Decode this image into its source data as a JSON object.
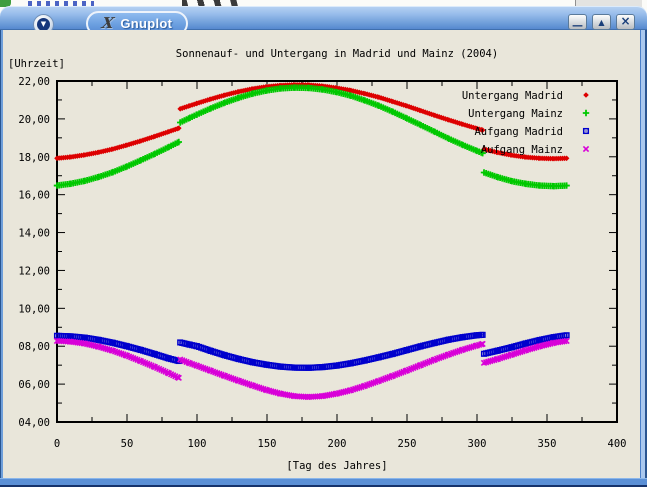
{
  "window": {
    "title": "Gnuplot",
    "icon": "x11-logo",
    "controls": [
      {
        "name": "minimize",
        "glyph": "—"
      },
      {
        "name": "maximize",
        "glyph": "▲"
      },
      {
        "name": "close",
        "glyph": "×"
      }
    ]
  },
  "chart_data": {
    "type": "scatter",
    "title": "Sonnenauf- und Untergang in Madrid und Mainz (2004)",
    "xlabel": "[Tag des Jahres]",
    "ylabel": "[Uhrzeit]",
    "xlim": [
      0,
      400
    ],
    "ylim": [
      4,
      22
    ],
    "x_ticks": {
      "values": [
        0,
        50,
        100,
        150,
        200,
        250,
        300,
        350,
        400
      ],
      "labels": [
        "0",
        "50",
        "100",
        "150",
        "200",
        "250",
        "300",
        "350",
        "400"
      ]
    },
    "y_ticks": {
      "values": [
        4,
        6,
        8,
        10,
        12,
        14,
        16,
        18,
        20,
        22
      ],
      "labels": [
        "04,00",
        "06,00",
        "08,00",
        "10,00",
        "12,00",
        "14,00",
        "16,00",
        "18,00",
        "20,00",
        "22,00"
      ]
    },
    "x_minor_step": 25,
    "y_minor_step": 1,
    "grid": false,
    "legend_position": "top-right",
    "background": "#e9e6da",
    "series": [
      {
        "name": "Untergang Madrid",
        "marker": "diamond",
        "color": "#dd0000",
        "points": [
          [
            0,
            17.92
          ],
          [
            10,
            17.99
          ],
          [
            20,
            18.1
          ],
          [
            30,
            18.24
          ],
          [
            40,
            18.41
          ],
          [
            50,
            18.62
          ],
          [
            60,
            18.84
          ],
          [
            70,
            19.08
          ],
          [
            80,
            19.33
          ],
          [
            87,
            19.51
          ],
          [
            88,
            20.53
          ],
          [
            95,
            20.7
          ],
          [
            100,
            20.82
          ],
          [
            110,
            21.05
          ],
          [
            120,
            21.26
          ],
          [
            130,
            21.44
          ],
          [
            140,
            21.59
          ],
          [
            150,
            21.7
          ],
          [
            160,
            21.77
          ],
          [
            170,
            21.8
          ],
          [
            180,
            21.79
          ],
          [
            190,
            21.73
          ],
          [
            200,
            21.63
          ],
          [
            210,
            21.5
          ],
          [
            220,
            21.33
          ],
          [
            230,
            21.14
          ],
          [
            240,
            20.91
          ],
          [
            250,
            20.68
          ],
          [
            260,
            20.43
          ],
          [
            270,
            20.18
          ],
          [
            280,
            19.94
          ],
          [
            290,
            19.71
          ],
          [
            300,
            19.49
          ],
          [
            304,
            19.41
          ],
          [
            305,
            18.4
          ],
          [
            315,
            18.22
          ],
          [
            325,
            18.08
          ],
          [
            335,
            17.98
          ],
          [
            345,
            17.92
          ],
          [
            355,
            17.9
          ],
          [
            364,
            17.92
          ]
        ]
      },
      {
        "name": "Untergang Mainz",
        "marker": "plus",
        "color": "#00c800",
        "points": [
          [
            0,
            16.48
          ],
          [
            10,
            16.58
          ],
          [
            20,
            16.73
          ],
          [
            30,
            16.94
          ],
          [
            40,
            17.19
          ],
          [
            50,
            17.49
          ],
          [
            60,
            17.82
          ],
          [
            70,
            18.16
          ],
          [
            80,
            18.52
          ],
          [
            87,
            18.78
          ],
          [
            88,
            19.81
          ],
          [
            95,
            20.06
          ],
          [
            100,
            20.23
          ],
          [
            110,
            20.56
          ],
          [
            120,
            20.86
          ],
          [
            130,
            21.12
          ],
          [
            140,
            21.34
          ],
          [
            150,
            21.5
          ],
          [
            160,
            21.61
          ],
          [
            170,
            21.65
          ],
          [
            180,
            21.63
          ],
          [
            190,
            21.55
          ],
          [
            200,
            21.41
          ],
          [
            210,
            21.22
          ],
          [
            220,
            20.97
          ],
          [
            230,
            20.69
          ],
          [
            240,
            20.37
          ],
          [
            250,
            20.02
          ],
          [
            260,
            19.67
          ],
          [
            270,
            19.31
          ],
          [
            280,
            18.95
          ],
          [
            290,
            18.62
          ],
          [
            300,
            18.31
          ],
          [
            304,
            18.19
          ],
          [
            305,
            17.17
          ],
          [
            315,
            16.92
          ],
          [
            325,
            16.71
          ],
          [
            335,
            16.57
          ],
          [
            345,
            16.48
          ],
          [
            355,
            16.45
          ],
          [
            364,
            16.48
          ]
        ]
      },
      {
        "name": "Aufgang Madrid",
        "marker": "square-dot",
        "color": "#0000cd",
        "points": [
          [
            0,
            8.55
          ],
          [
            10,
            8.52
          ],
          [
            20,
            8.45
          ],
          [
            30,
            8.33
          ],
          [
            40,
            8.18
          ],
          [
            50,
            8.0
          ],
          [
            60,
            7.8
          ],
          [
            70,
            7.58
          ],
          [
            80,
            7.35
          ],
          [
            87,
            7.22
          ],
          [
            88,
            8.2
          ],
          [
            95,
            8.08
          ],
          [
            100,
            8.0
          ],
          [
            110,
            7.75
          ],
          [
            120,
            7.52
          ],
          [
            130,
            7.32
          ],
          [
            140,
            7.15
          ],
          [
            150,
            7.02
          ],
          [
            160,
            6.92
          ],
          [
            170,
            6.87
          ],
          [
            180,
            6.86
          ],
          [
            190,
            6.9
          ],
          [
            200,
            6.98
          ],
          [
            210,
            7.1
          ],
          [
            220,
            7.25
          ],
          [
            230,
            7.42
          ],
          [
            240,
            7.6
          ],
          [
            250,
            7.8
          ],
          [
            260,
            8.0
          ],
          [
            270,
            8.18
          ],
          [
            280,
            8.35
          ],
          [
            290,
            8.48
          ],
          [
            300,
            8.58
          ],
          [
            304,
            8.6
          ],
          [
            305,
            7.6
          ],
          [
            315,
            7.77
          ],
          [
            325,
            7.95
          ],
          [
            335,
            8.15
          ],
          [
            345,
            8.33
          ],
          [
            355,
            8.48
          ],
          [
            364,
            8.58
          ]
        ]
      },
      {
        "name": "Aufgang Mainz",
        "marker": "cross",
        "color": "#d800d8",
        "points": [
          [
            0,
            8.28
          ],
          [
            10,
            8.24
          ],
          [
            20,
            8.14
          ],
          [
            30,
            7.97
          ],
          [
            40,
            7.76
          ],
          [
            50,
            7.5
          ],
          [
            60,
            7.21
          ],
          [
            70,
            6.9
          ],
          [
            80,
            6.57
          ],
          [
            87,
            6.33
          ],
          [
            88,
            7.3
          ],
          [
            95,
            7.1
          ],
          [
            100,
            6.97
          ],
          [
            110,
            6.7
          ],
          [
            120,
            6.43
          ],
          [
            130,
            6.17
          ],
          [
            140,
            5.92
          ],
          [
            150,
            5.68
          ],
          [
            160,
            5.49
          ],
          [
            170,
            5.36
          ],
          [
            180,
            5.32
          ],
          [
            190,
            5.37
          ],
          [
            200,
            5.5
          ],
          [
            210,
            5.68
          ],
          [
            220,
            5.91
          ],
          [
            230,
            6.17
          ],
          [
            240,
            6.44
          ],
          [
            250,
            6.72
          ],
          [
            260,
            7.01
          ],
          [
            270,
            7.3
          ],
          [
            280,
            7.57
          ],
          [
            290,
            7.82
          ],
          [
            300,
            8.04
          ],
          [
            304,
            8.12
          ],
          [
            305,
            7.12
          ],
          [
            315,
            7.33
          ],
          [
            325,
            7.56
          ],
          [
            335,
            7.79
          ],
          [
            345,
            8.0
          ],
          [
            355,
            8.18
          ],
          [
            364,
            8.28
          ]
        ]
      }
    ]
  }
}
